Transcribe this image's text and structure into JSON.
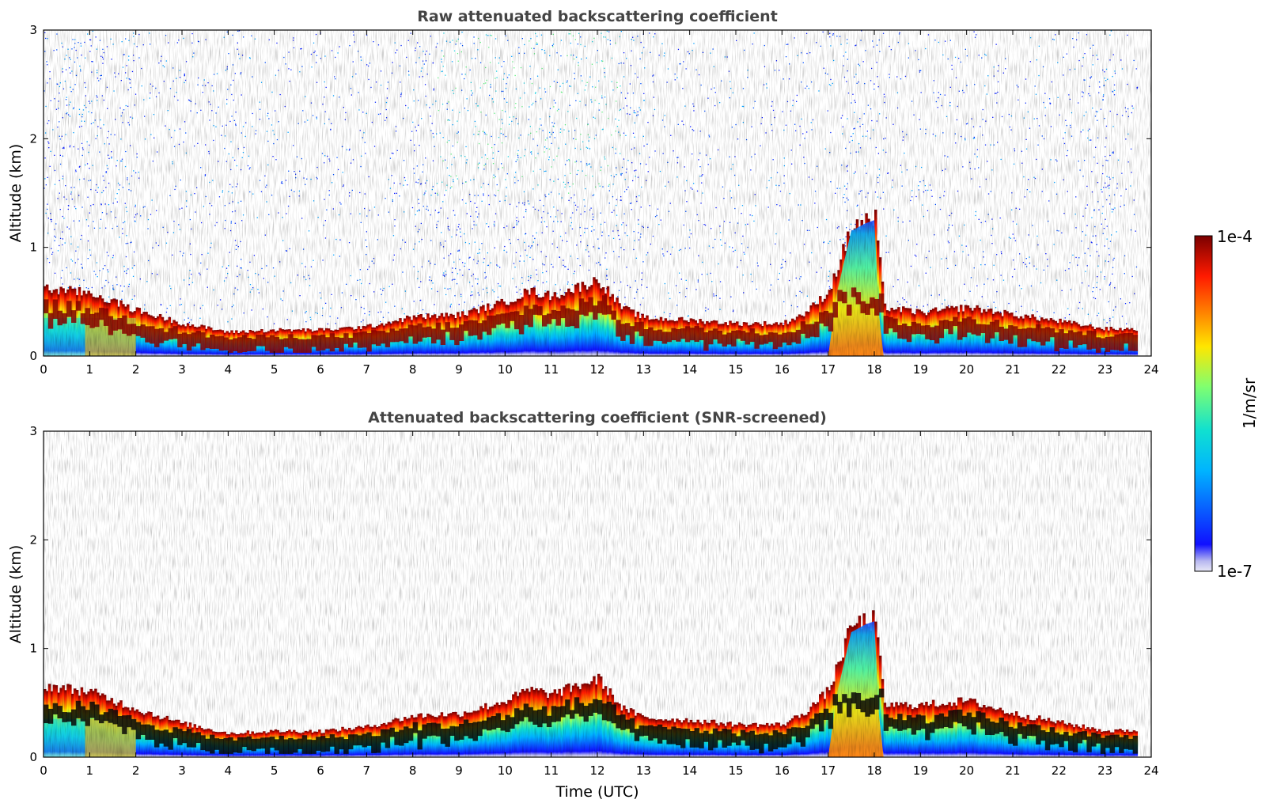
{
  "colors": {
    "background": "#ffffff",
    "axes": "#000000",
    "title": "#444444",
    "colormap": "jet",
    "high_backscatter_screened": "#000000"
  },
  "chart_data": [
    {
      "type": "heatmap",
      "title": "Raw attenuated backscattering coefficient",
      "xlabel": "",
      "ylabel": "Altitude (km)",
      "xlim": [
        0,
        24
      ],
      "ylim": [
        0,
        3
      ],
      "x_ticks": [
        "0",
        "1",
        "2",
        "3",
        "4",
        "5",
        "6",
        "7",
        "8",
        "9",
        "10",
        "11",
        "12",
        "13",
        "14",
        "15",
        "16",
        "17",
        "18",
        "19",
        "20",
        "21",
        "22",
        "23",
        "24"
      ],
      "y_ticks": [
        "0",
        "1",
        "2",
        "3"
      ],
      "color_scale": "log",
      "noise_above_layer": true,
      "boundary_layer_top_km": [
        [
          0,
          0.62
        ],
        [
          1,
          0.58
        ],
        [
          2,
          0.42
        ],
        [
          3,
          0.3
        ],
        [
          4,
          0.22
        ],
        [
          5,
          0.24
        ],
        [
          6,
          0.24
        ],
        [
          7,
          0.27
        ],
        [
          8,
          0.36
        ],
        [
          9,
          0.38
        ],
        [
          10,
          0.5
        ],
        [
          10.5,
          0.6
        ],
        [
          11,
          0.55
        ],
        [
          12,
          0.7
        ],
        [
          12.5,
          0.45
        ],
        [
          13,
          0.35
        ],
        [
          14,
          0.33
        ],
        [
          15,
          0.3
        ],
        [
          16,
          0.3
        ],
        [
          16.5,
          0.4
        ],
        [
          17,
          0.6
        ],
        [
          17.5,
          1.2
        ],
        [
          18,
          1.25
        ],
        [
          18.2,
          0.45
        ],
        [
          19,
          0.4
        ],
        [
          20,
          0.45
        ],
        [
          21,
          0.38
        ],
        [
          22,
          0.32
        ],
        [
          23,
          0.25
        ],
        [
          23.7,
          0.25
        ]
      ]
    },
    {
      "type": "heatmap",
      "title": "Attenuated backscattering coefficient (SNR-screened)",
      "xlabel": "Time (UTC)",
      "ylabel": "Altitude (km)",
      "xlim": [
        0,
        24
      ],
      "ylim": [
        0,
        3
      ],
      "x_ticks": [
        "0",
        "1",
        "2",
        "3",
        "4",
        "5",
        "6",
        "7",
        "8",
        "9",
        "10",
        "11",
        "12",
        "13",
        "14",
        "15",
        "16",
        "17",
        "18",
        "19",
        "20",
        "21",
        "22",
        "23",
        "24"
      ],
      "y_ticks": [
        "0",
        "1",
        "2",
        "3"
      ],
      "color_scale": "log",
      "noise_above_layer": false,
      "boundary_layer_top_km": [
        [
          0,
          0.66
        ],
        [
          1,
          0.6
        ],
        [
          2,
          0.44
        ],
        [
          3,
          0.31
        ],
        [
          4,
          0.22
        ],
        [
          5,
          0.24
        ],
        [
          6,
          0.24
        ],
        [
          7,
          0.28
        ],
        [
          8,
          0.38
        ],
        [
          9,
          0.4
        ],
        [
          10,
          0.52
        ],
        [
          10.5,
          0.62
        ],
        [
          11,
          0.58
        ],
        [
          12,
          0.72
        ],
        [
          12.5,
          0.46
        ],
        [
          13,
          0.36
        ],
        [
          14,
          0.34
        ],
        [
          15,
          0.3
        ],
        [
          16,
          0.3
        ],
        [
          16.5,
          0.42
        ],
        [
          17,
          0.62
        ],
        [
          17.5,
          1.22
        ],
        [
          18,
          1.26
        ],
        [
          18.2,
          0.48
        ],
        [
          19,
          0.48
        ],
        [
          20,
          0.52
        ],
        [
          21,
          0.4
        ],
        [
          22,
          0.32
        ],
        [
          23,
          0.24
        ],
        [
          23.7,
          0.25
        ]
      ]
    }
  ],
  "colorbar": {
    "label": "1/m/sr",
    "max_label": "1e-4",
    "min_label": "1e-7",
    "min_value": 1e-07,
    "max_value": 0.0001,
    "scale": "log"
  }
}
